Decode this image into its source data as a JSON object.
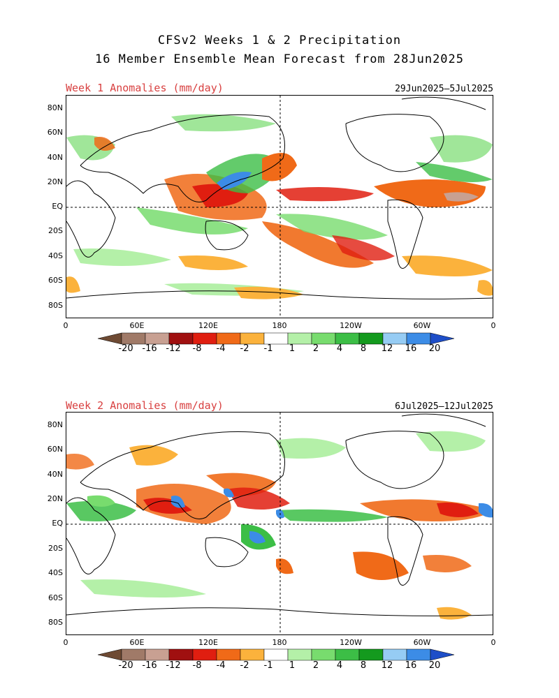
{
  "title_line1": "CFSv2 Weeks 1 & 2 Precipitation",
  "title_line2": "16 Member Ensemble Mean Forecast from 28Jun2025",
  "panels": [
    {
      "title": "Week 1 Anomalies (mm/day)",
      "date_range": "29Jun2025—5Jul2025"
    },
    {
      "title": "Week 2 Anomalies (mm/day)",
      "date_range": "6Jul2025—12Jul2025"
    }
  ],
  "lat_labels": [
    "80N",
    "60N",
    "40N",
    "20N",
    "EQ",
    "20S",
    "40S",
    "60S",
    "80S"
  ],
  "lon_labels": [
    "0",
    "60E",
    "120E",
    "180",
    "120W",
    "60W",
    "0"
  ],
  "legend": {
    "labels": [
      "-20",
      "-16",
      "-12",
      "-8",
      "-4",
      "-2",
      "-1",
      "1",
      "2",
      "4",
      "8",
      "12",
      "16",
      "20"
    ],
    "colors": [
      "#6e4a33",
      "#a07a68",
      "#c8a092",
      "#a01010",
      "#e01e10",
      "#f06a18",
      "#fbb23c",
      "#ffffff",
      "#b4f0a8",
      "#78dc6e",
      "#3cbe46",
      "#149a1e",
      "#96ccf4",
      "#3c8ce6",
      "#1e4ec8"
    ]
  }
}
